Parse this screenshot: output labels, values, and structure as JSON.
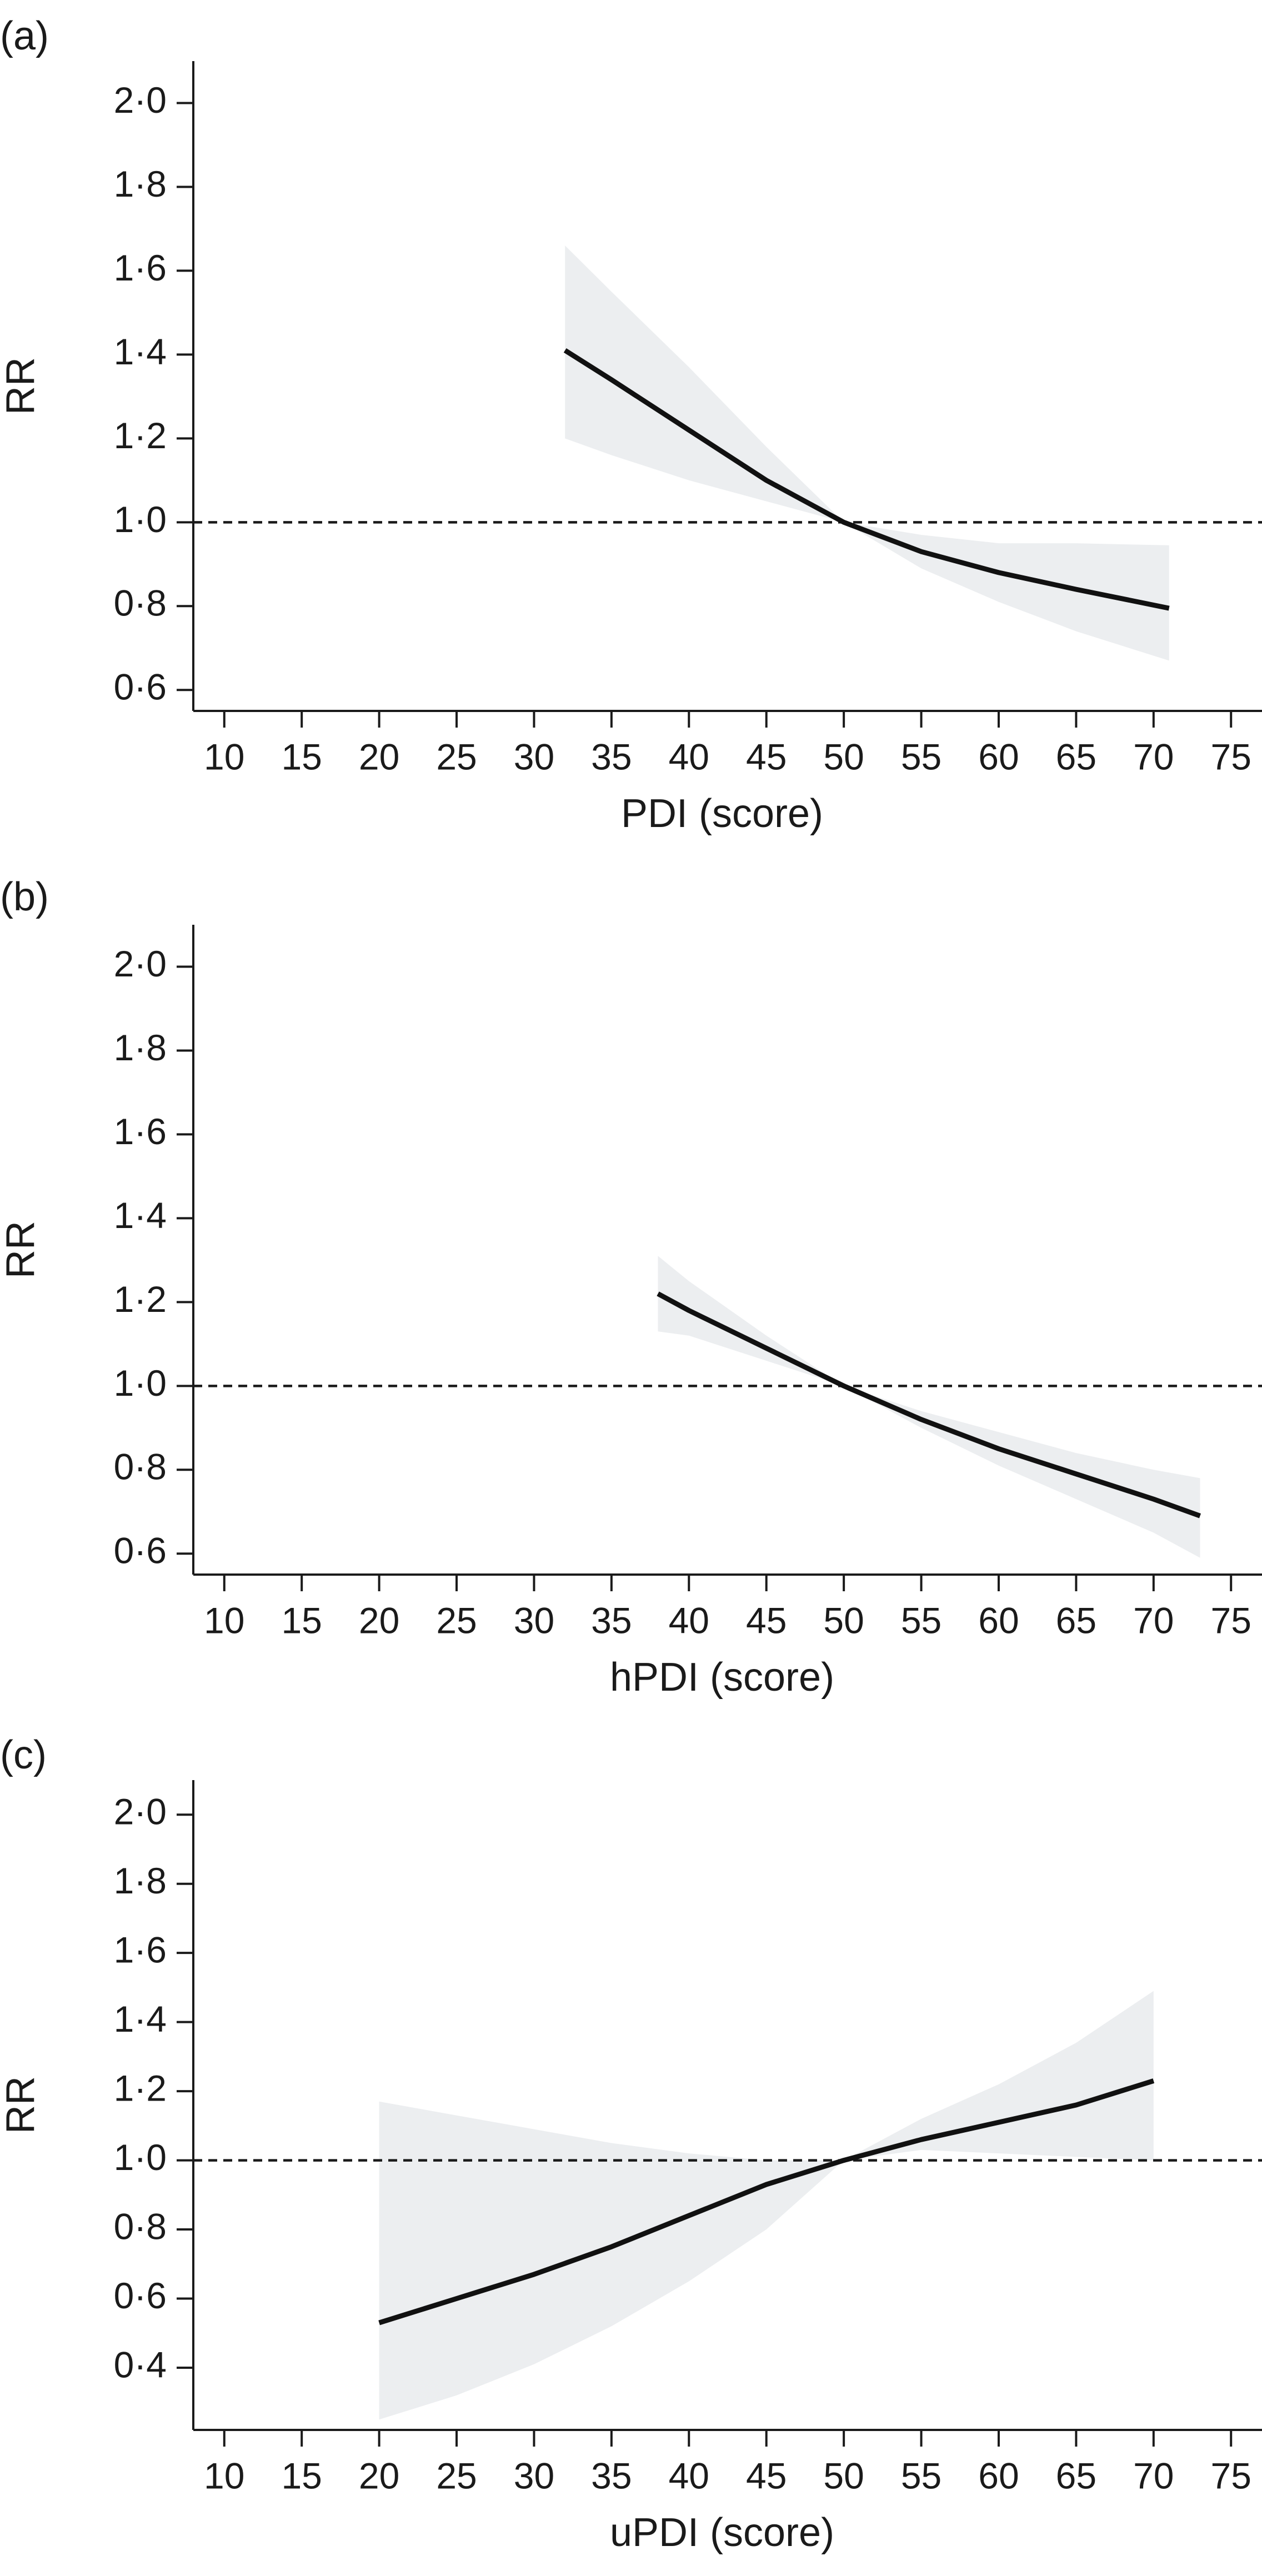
{
  "chart_data": [
    {
      "type": "line",
      "panel_label": "(a)",
      "xlabel": "PDI (score)",
      "ylabel": "RR",
      "xlim": [
        8,
        77
      ],
      "ylim": [
        0.55,
        2.1
      ],
      "xticks": [
        10,
        15,
        20,
        25,
        30,
        35,
        40,
        45,
        50,
        55,
        60,
        65,
        70,
        75
      ],
      "yticks": [
        0.6,
        0.8,
        1.0,
        1.2,
        1.4,
        1.6,
        1.8,
        2.0
      ],
      "ytick_labels": [
        "0·6",
        "0·8",
        "1·0",
        "1·2",
        "1·4",
        "1·6",
        "1·8",
        "2·0"
      ],
      "reference_line": 1.0,
      "series": [
        {
          "x": [
            32,
            35,
            40,
            45,
            50,
            55,
            60,
            65,
            71
          ],
          "values": [
            1.41,
            1.34,
            1.22,
            1.1,
            1.0,
            0.93,
            0.88,
            0.84,
            0.795
          ],
          "lower": [
            1.2,
            1.16,
            1.1,
            1.05,
            1.0,
            0.89,
            0.81,
            0.74,
            0.67
          ],
          "upper": [
            1.66,
            1.55,
            1.37,
            1.18,
            1.0,
            0.97,
            0.95,
            0.95,
            0.945
          ]
        }
      ]
    },
    {
      "type": "line",
      "panel_label": "(b)",
      "xlabel": "hPDI (score)",
      "ylabel": "RR",
      "xlim": [
        8,
        77
      ],
      "ylim": [
        0.55,
        2.1
      ],
      "xticks": [
        10,
        15,
        20,
        25,
        30,
        35,
        40,
        45,
        50,
        55,
        60,
        65,
        70,
        75
      ],
      "yticks": [
        0.6,
        0.8,
        1.0,
        1.2,
        1.4,
        1.6,
        1.8,
        2.0
      ],
      "ytick_labels": [
        "0·6",
        "0·8",
        "1·0",
        "1·2",
        "1·4",
        "1·6",
        "1·8",
        "2·0"
      ],
      "reference_line": 1.0,
      "series": [
        {
          "x": [
            38,
            40,
            45,
            50,
            55,
            60,
            65,
            70,
            73
          ],
          "values": [
            1.22,
            1.18,
            1.09,
            1.0,
            0.92,
            0.85,
            0.79,
            0.73,
            0.69
          ],
          "lower": [
            1.13,
            1.12,
            1.06,
            1.0,
            0.9,
            0.81,
            0.73,
            0.65,
            0.59
          ],
          "upper": [
            1.31,
            1.25,
            1.12,
            1.0,
            0.94,
            0.89,
            0.84,
            0.8,
            0.78
          ]
        }
      ]
    },
    {
      "type": "line",
      "panel_label": "(c)",
      "xlabel": "uPDI (score)",
      "ylabel": "RR",
      "xlim": [
        8,
        77
      ],
      "ylim": [
        0.22,
        2.1
      ],
      "xticks": [
        10,
        15,
        20,
        25,
        30,
        35,
        40,
        45,
        50,
        55,
        60,
        65,
        70,
        75
      ],
      "yticks": [
        0.4,
        0.6,
        0.8,
        1.0,
        1.2,
        1.4,
        1.6,
        1.8,
        2.0
      ],
      "ytick_labels": [
        "0·4",
        "0·6",
        "0·8",
        "1·0",
        "1·2",
        "1·4",
        "1·6",
        "1·8",
        "2·0"
      ],
      "reference_line": 1.0,
      "series": [
        {
          "x": [
            20,
            25,
            30,
            35,
            40,
            45,
            50,
            55,
            60,
            65,
            70
          ],
          "values": [
            0.53,
            0.6,
            0.67,
            0.75,
            0.84,
            0.93,
            1.0,
            1.06,
            1.11,
            1.16,
            1.23
          ],
          "lower": [
            0.25,
            0.32,
            0.41,
            0.52,
            0.65,
            0.8,
            1.0,
            1.03,
            1.02,
            1.01,
            1.0
          ],
          "upper": [
            1.17,
            1.13,
            1.09,
            1.05,
            1.02,
            1.0,
            1.0,
            1.12,
            1.22,
            1.34,
            1.49
          ]
        }
      ]
    }
  ]
}
